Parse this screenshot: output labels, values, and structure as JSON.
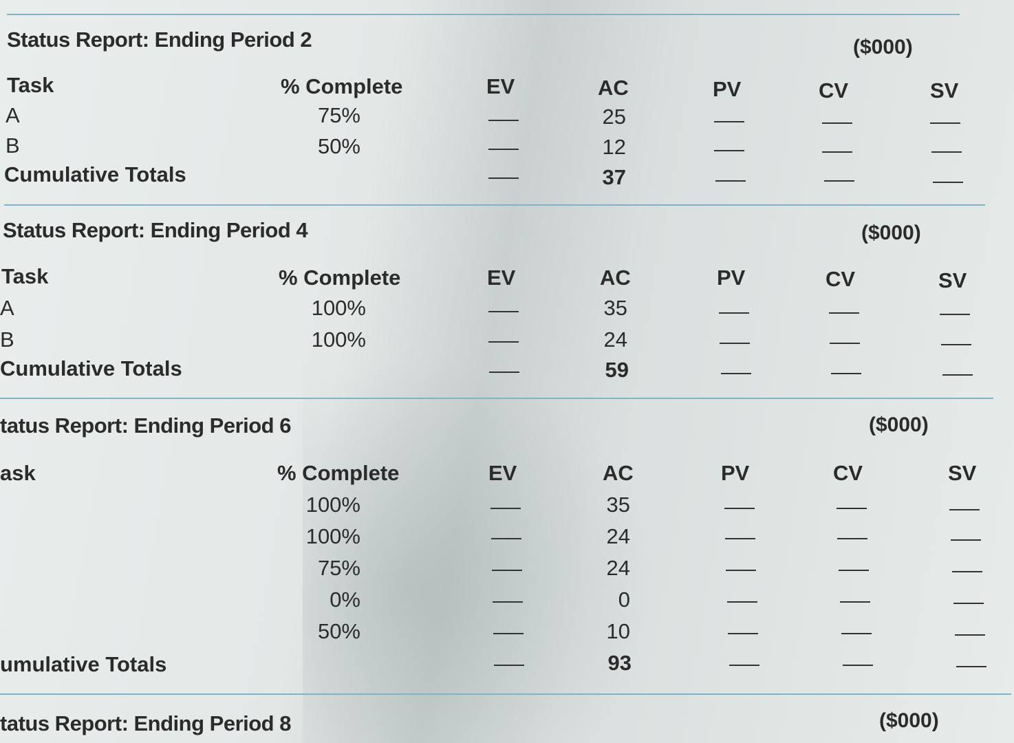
{
  "reports": [
    {
      "title": "Status Report: Ending Period 2",
      "unit": "($000)",
      "headers": {
        "task": "Task",
        "complete": "% Complete",
        "ev": "EV",
        "ac": "AC",
        "pv": "PV",
        "cv": "CV",
        "sv": "SV"
      },
      "rows": [
        {
          "task": "A",
          "complete": "75%",
          "ev": "—",
          "ac": "25",
          "pv": "—",
          "cv": "—",
          "sv": "—"
        },
        {
          "task": "B",
          "complete": "50%",
          "ev": "—",
          "ac": "12",
          "pv": "—",
          "cv": "—",
          "sv": "—"
        }
      ],
      "totals": {
        "label": "Cumulative Totals",
        "ev": "—",
        "ac": "37",
        "pv": "—",
        "cv": "—",
        "sv": "—"
      }
    },
    {
      "title": "Status Report: Ending Period 4",
      "unit": "($000)",
      "headers": {
        "task": "Task",
        "complete": "% Complete",
        "ev": "EV",
        "ac": "AC",
        "pv": "PV",
        "cv": "CV",
        "sv": "SV"
      },
      "rows": [
        {
          "task": "A",
          "complete": "100%",
          "ev": "—",
          "ac": "35",
          "pv": "—",
          "cv": "—",
          "sv": "—"
        },
        {
          "task": "B",
          "complete": "100%",
          "ev": "—",
          "ac": "24",
          "pv": "—",
          "cv": "—",
          "sv": "—"
        }
      ],
      "totals": {
        "label": "Cumulative Totals",
        "ev": "—",
        "ac": "59",
        "pv": "—",
        "cv": "—",
        "sv": "—"
      }
    },
    {
      "title": "tatus Report: Ending Period 6",
      "unit": "($000)",
      "headers": {
        "task": "ask",
        "complete": "% Complete",
        "ev": "EV",
        "ac": "AC",
        "pv": "PV",
        "cv": "CV",
        "sv": "SV"
      },
      "rows": [
        {
          "task": "",
          "complete": "100%",
          "ev": "—",
          "ac": "35",
          "pv": "—",
          "cv": "—",
          "sv": "—"
        },
        {
          "task": "",
          "complete": "100%",
          "ev": "—",
          "ac": "24",
          "pv": "—",
          "cv": "—",
          "sv": "—"
        },
        {
          "task": "",
          "complete": "75%",
          "ev": "—",
          "ac": "24",
          "pv": "—",
          "cv": "—",
          "sv": "—"
        },
        {
          "task": "",
          "complete": "0%",
          "ev": "—",
          "ac": "0",
          "pv": "—",
          "cv": "—",
          "sv": "—"
        },
        {
          "task": "",
          "complete": "50%",
          "ev": "—",
          "ac": "10",
          "pv": "—",
          "cv": "—",
          "sv": "—"
        }
      ],
      "totals": {
        "label": "umulative Totals",
        "ev": "—",
        "ac": "93",
        "pv": "—",
        "cv": "—",
        "sv": "—"
      }
    },
    {
      "title": "tatus Report: Ending Period 8",
      "unit": "($000)"
    }
  ]
}
